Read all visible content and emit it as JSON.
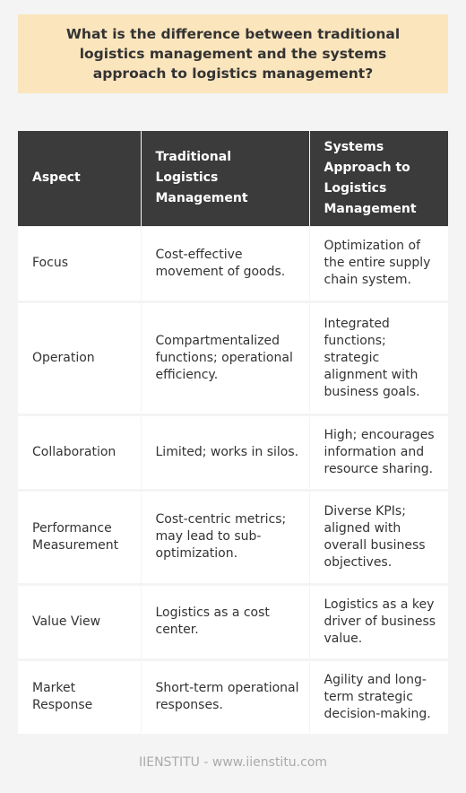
{
  "title": "What is the difference between traditional logistics management and the systems approach to logistics management?",
  "table": {
    "headers": [
      "Aspect",
      "Traditional Logistics Management",
      "Systems Approach to Logistics Management"
    ],
    "rows": [
      [
        "Focus",
        "Cost-effective movement of goods.",
        "Optimization of the entire supply chain system."
      ],
      [
        "Operation",
        "Compartmentalized functions; operational efficiency.",
        "Integrated functions; strategic alignment with business goals."
      ],
      [
        "Collaboration",
        "Limited; works in silos.",
        "High; encourages information and resource sharing."
      ],
      [
        "Performance Measurement",
        "Cost-centric metrics; may lead to sub-optimization.",
        "Diverse KPIs; aligned with overall business objectives."
      ],
      [
        "Value View",
        "Logistics as a cost center.",
        "Logistics as a key driver of business value."
      ],
      [
        "Market Response",
        "Short-term operational responses.",
        "Agility and long-term strategic decision-making."
      ]
    ]
  },
  "footer": "IIENSTITU - www.iienstitu.com",
  "colors": {
    "title_background": "#fbe5bd",
    "header_background": "#3b3b3b",
    "page_background": "#f4f4f4"
  }
}
